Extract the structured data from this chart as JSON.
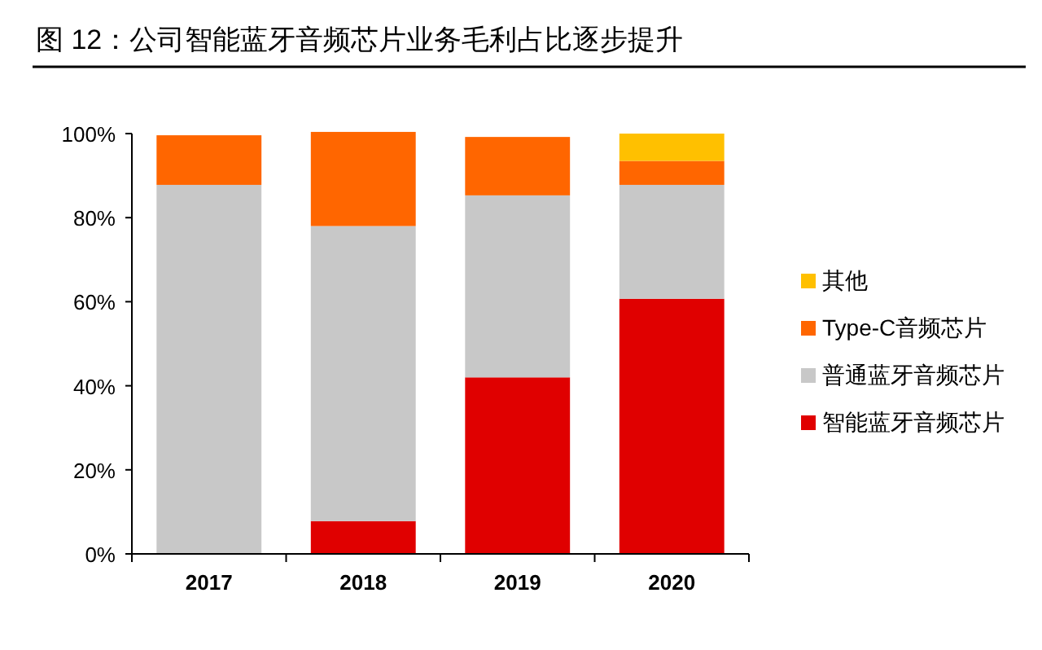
{
  "chart_data": {
    "type": "bar",
    "title": "图  12：公司智能蓝牙音频芯片业务毛利占比逐步提升",
    "categories": [
      "2017",
      "2018",
      "2019",
      "2020"
    ],
    "stacked": true,
    "series": [
      {
        "name": "智能蓝牙音频芯片",
        "color": "#e00000",
        "values": [
          0,
          7.8,
          42.0,
          60.7
        ]
      },
      {
        "name": "普通蓝牙音频芯片",
        "color": "#c8c8c8",
        "values": [
          87.8,
          70.2,
          43.3,
          27.1
        ]
      },
      {
        "name": "Type-C音频芯片",
        "color": "#ff6600",
        "values": [
          11.8,
          22.4,
          13.9,
          5.7
        ]
      },
      {
        "name": "其他",
        "color": "#ffc000",
        "values": [
          0,
          0,
          0,
          6.5
        ]
      }
    ],
    "ylim": [
      0,
      100
    ],
    "yticks": [
      {
        "value": 0,
        "label": "0%"
      },
      {
        "value": 20,
        "label": "20%"
      },
      {
        "value": 40,
        "label": "40%"
      },
      {
        "value": 60,
        "label": "60%"
      },
      {
        "value": 80,
        "label": "80%"
      },
      {
        "value": 100,
        "label": "100%"
      }
    ],
    "grid": false,
    "legend": "right"
  }
}
